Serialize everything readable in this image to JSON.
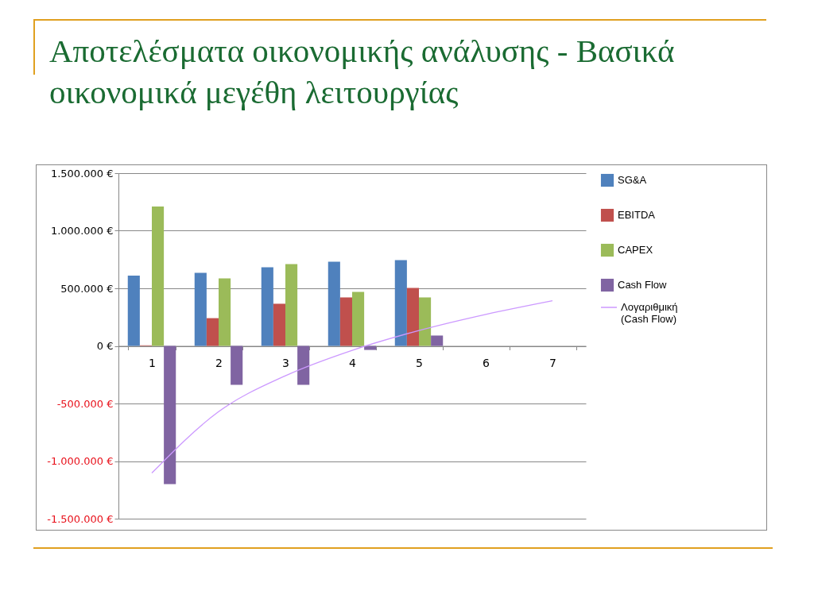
{
  "chart_data": {
    "type": "bar",
    "title": "Αποτελέσματα οικονομικής ανάλυσης - Βασικά οικονομικά μεγέθη λειτουργίας",
    "categories": [
      "1",
      "2",
      "3",
      "4",
      "5",
      "6",
      "7"
    ],
    "series": [
      {
        "name": "SG&A",
        "color": "#4f81bd",
        "values": [
          610000,
          635000,
          683000,
          731000,
          745000,
          null,
          null
        ]
      },
      {
        "name": "EBITDA",
        "color": "#c0504d",
        "values": [
          5000,
          241000,
          366000,
          421000,
          504000,
          null,
          null
        ]
      },
      {
        "name": "CAPEX",
        "color": "#9bbb59",
        "values": [
          1210000,
          587000,
          711000,
          469000,
          421000,
          null,
          null
        ]
      },
      {
        "name": "Cash Flow",
        "color": "#8064a2",
        "values": [
          -1200000,
          -338000,
          -338000,
          -35000,
          90000,
          null,
          null
        ]
      },
      {
        "name": "Λογαριθμική (Cash Flow)",
        "type": "line",
        "color": "#cc99ff",
        "values": [
          -1104000,
          -571000,
          -259000,
          -38000,
          134000,
          274000,
          393000
        ]
      }
    ],
    "ylim": [
      -1500000,
      1500000
    ],
    "yticks": [
      {
        "value": -1500000,
        "label": "-1.500.000 €"
      },
      {
        "value": -1000000,
        "label": "-1.000.000 €"
      },
      {
        "value": -500000,
        "label": "-500.000 €"
      },
      {
        "value": 0,
        "label": "0 €"
      },
      {
        "value": 500000,
        "label": "500.000 €"
      },
      {
        "value": 1000000,
        "label": "1.000.000 €"
      },
      {
        "value": 1500000,
        "label": "1.500.000 €"
      }
    ],
    "grid": "y",
    "legend": "right"
  }
}
